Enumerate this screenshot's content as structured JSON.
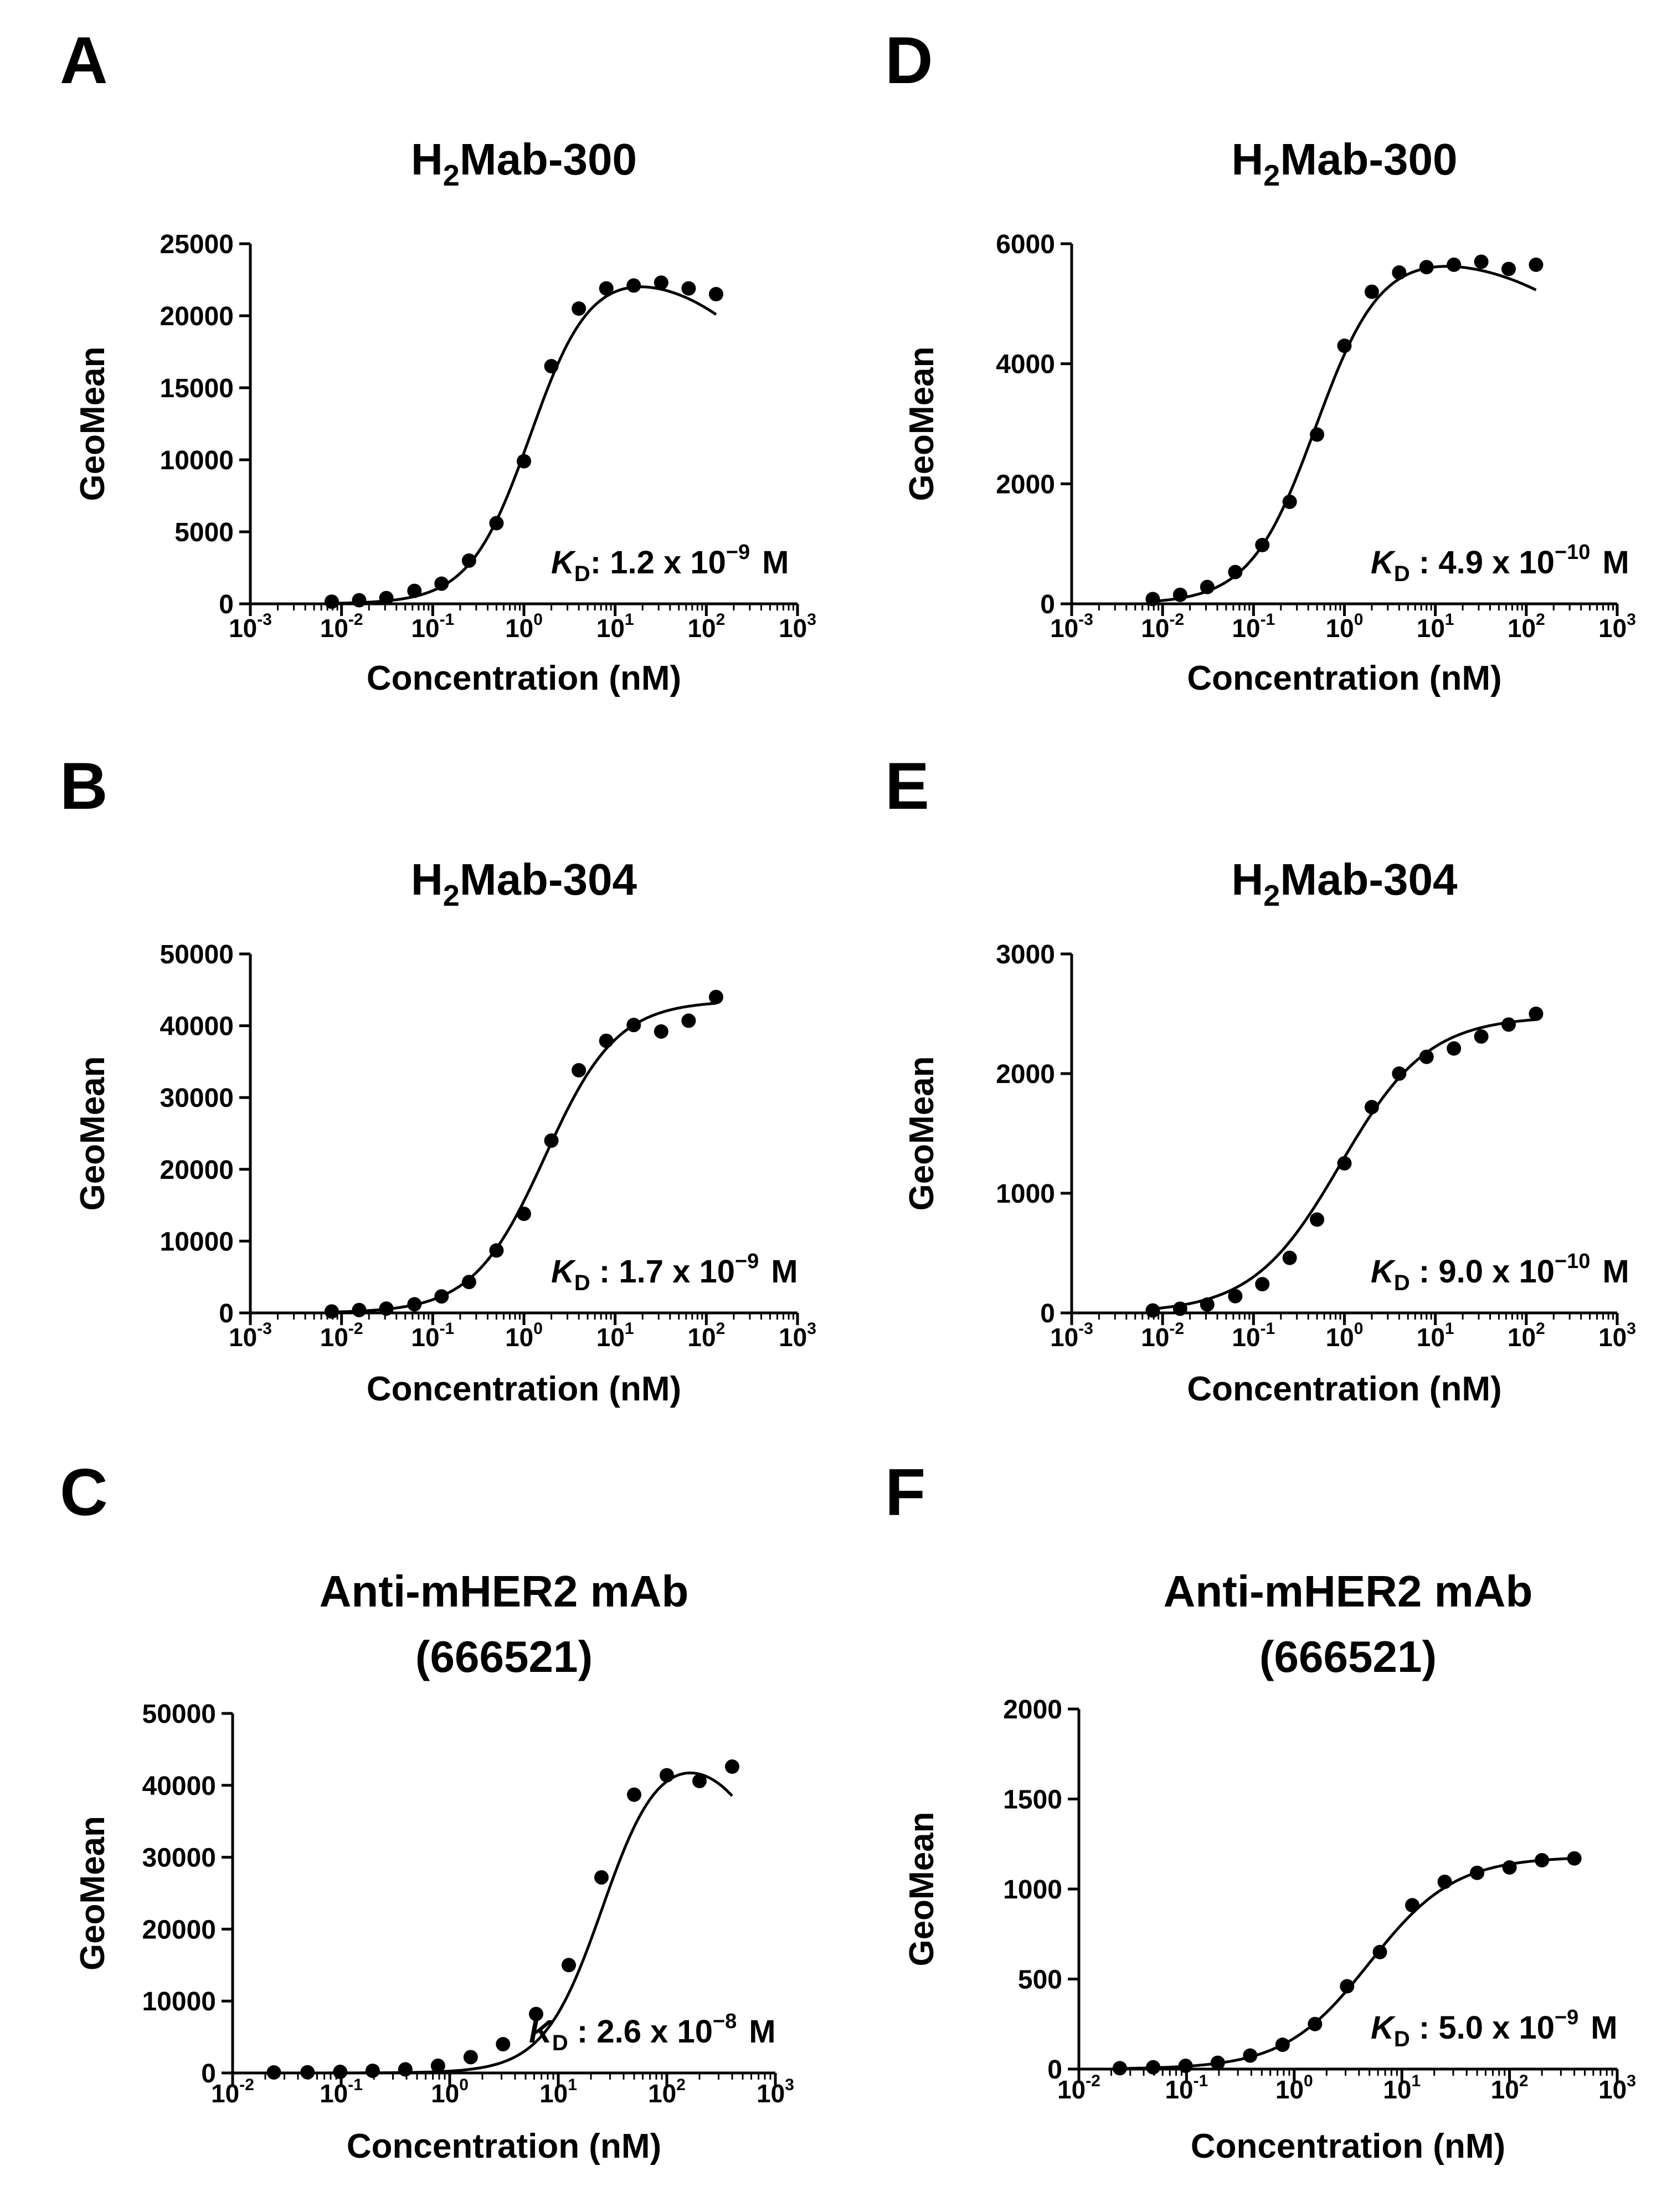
{
  "chart_data": [
    {
      "panel": "A",
      "type": "scatter",
      "title": "H₂Mab-300",
      "title_main": "H",
      "title_sub": "2",
      "title_rest": "Mab-300",
      "xlabel": "Concentration (nM)",
      "ylabel": "GeoMean",
      "xscale": "log",
      "xlim": [
        -3,
        3
      ],
      "ylim": [
        0,
        25000
      ],
      "yticks": [
        "0",
        "5000",
        "10000",
        "15000",
        "20000",
        "25000"
      ],
      "xticks": [
        -3,
        -2,
        -1,
        0,
        1,
        2,
        3
      ],
      "kd_text": "K",
      "kd_sub": "D",
      "kd_value": ":  1.2 x 10",
      "kd_exp": "−9",
      "kd_unit": "M",
      "points": [
        [
          0.0078,
          150
        ],
        [
          0.0156,
          250
        ],
        [
          0.031,
          400
        ],
        [
          0.063,
          900
        ],
        [
          0.125,
          1400
        ],
        [
          0.25,
          3000
        ],
        [
          0.5,
          5600
        ],
        [
          1,
          9900
        ],
        [
          2,
          16500
        ],
        [
          4,
          20500
        ],
        [
          8,
          21900
        ],
        [
          16,
          22100
        ],
        [
          32,
          22300
        ],
        [
          64,
          21900
        ],
        [
          128,
          21500
        ]
      ],
      "curve": {
        "type": "bell",
        "min": 0,
        "max": 24000,
        "ec50": 1.2,
        "hill": 1.3,
        "ic50": 2000,
        "hill2": 0.6
      }
    },
    {
      "panel": "B",
      "type": "scatter",
      "title": "H₂Mab-304",
      "title_main": "H",
      "title_sub": "2",
      "title_rest": "Mab-304",
      "xlabel": "Concentration (nM)",
      "ylabel": "GeoMean",
      "xscale": "log",
      "xlim": [
        -3,
        3
      ],
      "ylim": [
        0,
        50000
      ],
      "yticks": [
        "0",
        "10000",
        "20000",
        "30000",
        "40000",
        "50000"
      ],
      "xticks": [
        -3,
        -2,
        -1,
        0,
        1,
        2,
        3
      ],
      "kd_text": "K",
      "kd_sub": "D",
      "kd_value": " : 1.7 x 10",
      "kd_exp": "−9",
      "kd_unit": "M",
      "points": [
        [
          0.0078,
          200
        ],
        [
          0.0156,
          400
        ],
        [
          0.031,
          600
        ],
        [
          0.063,
          1200
        ],
        [
          0.125,
          2300
        ],
        [
          0.25,
          4300
        ],
        [
          0.5,
          8700
        ],
        [
          1,
          13800
        ],
        [
          2,
          24000
        ],
        [
          4,
          33800
        ],
        [
          8,
          37900
        ],
        [
          16,
          40100
        ],
        [
          32,
          39200
        ],
        [
          64,
          40700
        ],
        [
          128,
          44000
        ]
      ],
      "curve": {
        "type": "hill",
        "min": 0,
        "max": 43500,
        "ec50": 1.7,
        "hill": 1.1
      }
    },
    {
      "panel": "C",
      "type": "scatter",
      "title_line1": "Anti-mHER2 mAb",
      "title_line2": "(666521)",
      "xlabel": "Concentration (nM)",
      "ylabel": "GeoMean",
      "xscale": "log",
      "xlim": [
        -2,
        3
      ],
      "ylim": [
        0,
        50000
      ],
      "yticks": [
        "0",
        "10000",
        "20000",
        "30000",
        "40000",
        "50000"
      ],
      "xticks": [
        -2,
        -1,
        0,
        1,
        2,
        3
      ],
      "kd_text": "K",
      "kd_sub": "D",
      "kd_value": " : 2.6 x 10",
      "kd_exp": "−8",
      "kd_unit": "M",
      "points": [
        [
          0.024,
          80
        ],
        [
          0.049,
          100
        ],
        [
          0.098,
          150
        ],
        [
          0.195,
          300
        ],
        [
          0.39,
          500
        ],
        [
          0.78,
          1000
        ],
        [
          1.56,
          2200
        ],
        [
          3.1,
          4000
        ],
        [
          6.25,
          8200
        ],
        [
          12.5,
          15000
        ],
        [
          25,
          27200
        ],
        [
          50,
          38700
        ],
        [
          100,
          41400
        ],
        [
          200,
          40600
        ],
        [
          400,
          42600
        ]
      ],
      "curve": {
        "type": "bell",
        "min": 0,
        "max": 47000,
        "ec50": 26,
        "hill": 1.6,
        "ic50": 1500,
        "hill2": 1.2
      }
    },
    {
      "panel": "D",
      "type": "scatter",
      "title": "H₂Mab-300",
      "title_main": "H",
      "title_sub": "2",
      "title_rest": "Mab-300",
      "xlabel": "Concentration (nM)",
      "ylabel": "GeoMean",
      "xscale": "log",
      "xlim": [
        -3,
        3
      ],
      "ylim": [
        0,
        6000
      ],
      "yticks": [
        "0",
        "2000",
        "4000",
        "6000"
      ],
      "xticks": [
        -3,
        -2,
        -1,
        0,
        1,
        2,
        3
      ],
      "kd_text": "K",
      "kd_sub": "D",
      "kd_value": " : 4.9 x 10",
      "kd_exp": "−10",
      "kd_unit": "M",
      "points": [
        [
          0.0078,
          80
        ],
        [
          0.0156,
          150
        ],
        [
          0.031,
          280
        ],
        [
          0.063,
          530
        ],
        [
          0.125,
          980
        ],
        [
          0.25,
          1700
        ],
        [
          0.5,
          2820
        ],
        [
          1,
          4300
        ],
        [
          2,
          5200
        ],
        [
          4,
          5520
        ],
        [
          8,
          5610
        ],
        [
          16,
          5650
        ],
        [
          32,
          5700
        ],
        [
          64,
          5580
        ],
        [
          128,
          5650
        ]
      ],
      "curve": {
        "type": "bell",
        "min": 0,
        "max": 6000,
        "ec50": 0.49,
        "hill": 1.2,
        "ic50": 6000,
        "hill2": 0.5
      }
    },
    {
      "panel": "E",
      "type": "scatter",
      "title": "H₂Mab-304",
      "title_main": "H",
      "title_sub": "2",
      "title_rest": "Mab-304",
      "xlabel": "Concentration (nM)",
      "ylabel": "GeoMean",
      "xscale": "log",
      "xlim": [
        -3,
        3
      ],
      "ylim": [
        0,
        3000
      ],
      "yticks": [
        "0",
        "1000",
        "2000",
        "3000"
      ],
      "xticks": [
        -3,
        -2,
        -1,
        0,
        1,
        2,
        3
      ],
      "kd_text": "K",
      "kd_sub": "D",
      "kd_value": " : 9.0 x 10",
      "kd_exp": "−10",
      "kd_unit": "M",
      "points": [
        [
          0.0078,
          20
        ],
        [
          0.0156,
          35
        ],
        [
          0.031,
          70
        ],
        [
          0.063,
          140
        ],
        [
          0.125,
          240
        ],
        [
          0.25,
          460
        ],
        [
          0.5,
          780
        ],
        [
          1,
          1250
        ],
        [
          2,
          1720
        ],
        [
          4,
          2000
        ],
        [
          8,
          2140
        ],
        [
          16,
          2210
        ],
        [
          32,
          2310
        ],
        [
          64,
          2410
        ],
        [
          128,
          2500
        ]
      ],
      "curve": {
        "type": "hill",
        "min": 0,
        "max": 2480,
        "ec50": 0.9,
        "hill": 0.9
      }
    },
    {
      "panel": "F",
      "type": "scatter",
      "title_line1": "Anti-mHER2 mAb",
      "title_line2": "(666521)",
      "xlabel": "Concentration (nM)",
      "ylabel": "GeoMean",
      "xscale": "log",
      "xlim": [
        -2,
        3
      ],
      "ylim": [
        0,
        2000
      ],
      "yticks": [
        "0",
        "500",
        "1000",
        "1500",
        "2000"
      ],
      "xticks": [
        -2,
        -1,
        0,
        1,
        2,
        3
      ],
      "kd_text": "K",
      "kd_sub": "D",
      "kd_value": " : 5.0 x 10",
      "kd_exp": "−9",
      "kd_unit": "M",
      "points": [
        [
          0.024,
          5
        ],
        [
          0.049,
          10
        ],
        [
          0.098,
          18
        ],
        [
          0.195,
          35
        ],
        [
          0.39,
          75
        ],
        [
          0.78,
          135
        ],
        [
          1.56,
          250
        ],
        [
          3.1,
          460
        ],
        [
          6.25,
          650
        ],
        [
          12.5,
          910
        ],
        [
          25,
          1040
        ],
        [
          50,
          1090
        ],
        [
          100,
          1120
        ],
        [
          200,
          1160
        ],
        [
          400,
          1170
        ]
      ],
      "curve": {
        "type": "hill",
        "min": 0,
        "max": 1180,
        "ec50": 5.0,
        "hill": 1.1
      }
    }
  ]
}
